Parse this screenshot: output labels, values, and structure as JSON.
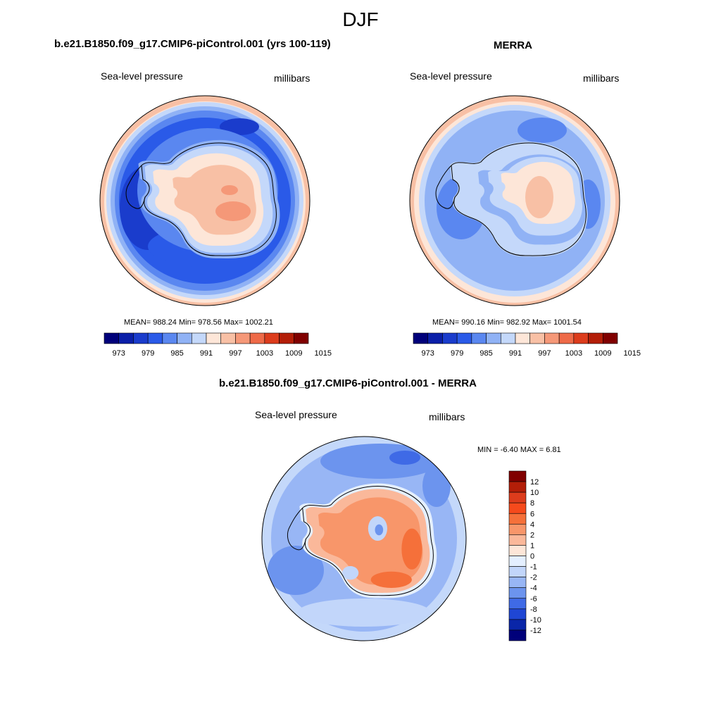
{
  "figure": {
    "title": "DJF"
  },
  "panels": [
    {
      "title": "b.e21.B1850.f09_g17.CMIP6-piControl.001 (yrs 100-119)",
      "variable": "Sea-level pressure",
      "units": "millibars",
      "stats": "MEAN= 988.24  Min= 978.56  Max= 1002.21"
    },
    {
      "title": "MERRA",
      "variable": "Sea-level pressure",
      "units": "millibars",
      "stats": "MEAN= 990.16  Min= 982.92  Max= 1001.54"
    },
    {
      "title": "b.e21.B1850.f09_g17.CMIP6-piControl.001 - MERRA",
      "variable": "Sea-level pressure",
      "units": "millibars",
      "stats": "MIN =  -6.40 MAX =   6.81"
    }
  ],
  "colorbar_abs": {
    "tick_labels": [
      "973",
      "979",
      "985",
      "991",
      "997",
      "1003",
      "1009",
      "1015"
    ],
    "colors": [
      "#00007a",
      "#0a1fa8",
      "#1a3ccc",
      "#2a5ae8",
      "#5a87f0",
      "#90b2f5",
      "#c4d8fa",
      "#fde6d8",
      "#f8c0a5",
      "#f59878",
      "#ee6a48",
      "#dc3c1c",
      "#b31e08",
      "#800000"
    ]
  },
  "colorbar_diff": {
    "tick_labels": [
      "12",
      "10",
      "8",
      "6",
      "4",
      "2",
      "1",
      "0",
      "-1",
      "-2",
      "-4",
      "-6",
      "-8",
      "-10",
      "-12"
    ],
    "colors": [
      "#800000",
      "#b31e08",
      "#dc3c1c",
      "#f54a1c",
      "#f5703a",
      "#f8966a",
      "#fab89a",
      "#fde6d8",
      "#e4efff",
      "#c2d6fa",
      "#98b6f5",
      "#6c94ee",
      "#3f6ae6",
      "#1f46d4",
      "#0a26a8",
      "#00007a"
    ]
  },
  "map_colors": {
    "ocean_low": "#2a5ae8",
    "ocean_mid": "#5a87f0",
    "ocean_light": "#90b2f5",
    "ocean_pale": "#c4d8fa",
    "land_warm": "#f8c0a5",
    "land_hot": "#f59878",
    "land_pale": "#fde6d8",
    "coast": "#000000"
  },
  "map_shapes": [
    "antarctic-continent",
    "pressure-low-belt",
    "coastline"
  ]
}
